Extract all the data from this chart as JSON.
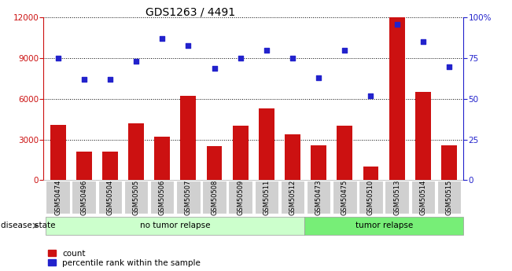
{
  "title": "GDS1263 / 4491",
  "samples": [
    "GSM50474",
    "GSM50496",
    "GSM50504",
    "GSM50505",
    "GSM50506",
    "GSM50507",
    "GSM50508",
    "GSM50509",
    "GSM50511",
    "GSM50512",
    "GSM50473",
    "GSM50475",
    "GSM50510",
    "GSM50513",
    "GSM50514",
    "GSM50515"
  ],
  "counts": [
    4100,
    2100,
    2100,
    4200,
    3200,
    6200,
    2500,
    4000,
    5300,
    3400,
    2600,
    4000,
    1000,
    12000,
    6500,
    2600
  ],
  "percentiles": [
    75,
    62,
    62,
    73,
    87,
    83,
    69,
    75,
    80,
    75,
    63,
    80,
    52,
    96,
    85,
    70
  ],
  "bar_color": "#cc1111",
  "dot_color": "#2222cc",
  "left_ylim": [
    0,
    12000
  ],
  "right_ylim": [
    0,
    100
  ],
  "left_yticks": [
    0,
    3000,
    6000,
    9000,
    12000
  ],
  "right_yticks": [
    0,
    25,
    50,
    75,
    100
  ],
  "right_yticklabels": [
    "0",
    "25",
    "50",
    "75",
    "100%"
  ],
  "no_relapse_count": 10,
  "tumor_relapse_count": 6,
  "no_relapse_label": "no tumor relapse",
  "tumor_relapse_label": "tumor relapse",
  "disease_state_label": "disease state",
  "legend_count_label": "count",
  "legend_pct_label": "percentile rank within the sample",
  "bg_color": "#ffffff",
  "tick_label_bg": "#d0d0d0",
  "no_relapse_bg": "#ccffcc",
  "tumor_relapse_bg": "#77ee77",
  "grid_color": "#000000",
  "title_fontsize": 10,
  "axis_fontsize": 7.5,
  "label_fontsize": 8
}
